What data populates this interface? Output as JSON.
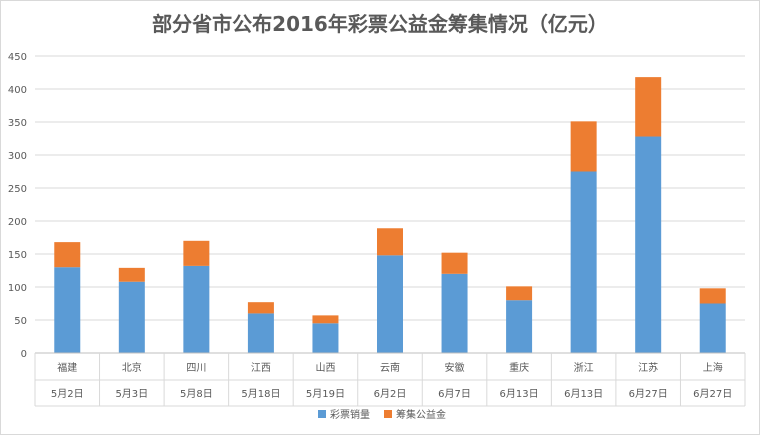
{
  "chart_data": {
    "type": "bar",
    "stacked": true,
    "title": "部分省市公布2016年彩票公益金筹集情况（亿元）",
    "categories": [
      "福建",
      "北京",
      "四川",
      "江西",
      "山西",
      "云南",
      "安徽",
      "重庆",
      "浙江",
      "江苏",
      "上海"
    ],
    "dates": [
      "5月2日",
      "5月3日",
      "5月8日",
      "5月18日",
      "5月19日",
      "6月2日",
      "6月7日",
      "6月13日",
      "6月13日",
      "6月27日",
      "6月27日"
    ],
    "series": [
      {
        "name": "彩票销量",
        "color": "#5b9bd5",
        "values": [
          130,
          108,
          132,
          60,
          45,
          148,
          120,
          80,
          275,
          328,
          75
        ]
      },
      {
        "name": "筹集公益金",
        "color": "#ed7d31",
        "values": [
          38,
          21,
          38,
          17,
          12,
          41,
          32,
          21,
          76,
          90,
          23
        ]
      }
    ],
    "yticks": [
      0,
      50,
      100,
      150,
      200,
      250,
      300,
      350,
      400,
      450
    ],
    "ylim": [
      0,
      450
    ],
    "grid": true,
    "legend": "bottom"
  }
}
